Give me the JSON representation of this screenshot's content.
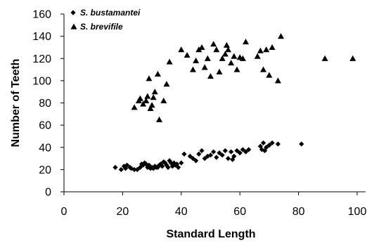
{
  "chart_data": {
    "type": "scatter",
    "xlabel": "Standard Length",
    "ylabel": "Number of Teeth",
    "xlim": [
      0,
      100
    ],
    "ylim": [
      0,
      160
    ],
    "xticks": [
      "0",
      "20",
      "40",
      "60",
      "80",
      "100"
    ],
    "yticks": [
      "0",
      "20",
      "40",
      "60",
      "80",
      "100",
      "120",
      "140",
      "160"
    ],
    "grid": false,
    "legend_position": "top-left",
    "series": [
      {
        "name": "S. bustamantei",
        "marker": "diamond",
        "color": "#000000",
        "points": [
          [
            17.5,
            22
          ],
          [
            19.5,
            20
          ],
          [
            20.5,
            23
          ],
          [
            21,
            21
          ],
          [
            21.5,
            24
          ],
          [
            22.5,
            22
          ],
          [
            23,
            21
          ],
          [
            24,
            20
          ],
          [
            25,
            20
          ],
          [
            26,
            22
          ],
          [
            26.5,
            25
          ],
          [
            27,
            24
          ],
          [
            27.5,
            26
          ],
          [
            28,
            25
          ],
          [
            28.5,
            22
          ],
          [
            29,
            24
          ],
          [
            29.5,
            21
          ],
          [
            30,
            22
          ],
          [
            30.5,
            21
          ],
          [
            31,
            23
          ],
          [
            31.5,
            22
          ],
          [
            32,
            22
          ],
          [
            32.5,
            24
          ],
          [
            33,
            25
          ],
          [
            33.5,
            23
          ],
          [
            34,
            27
          ],
          [
            34.5,
            26
          ],
          [
            35,
            24
          ],
          [
            35.5,
            22
          ],
          [
            36,
            28
          ],
          [
            36.5,
            26
          ],
          [
            37,
            23
          ],
          [
            37.5,
            26
          ],
          [
            38,
            24
          ],
          [
            38.5,
            25
          ],
          [
            39,
            22
          ],
          [
            40,
            26
          ],
          [
            41,
            34
          ],
          [
            43,
            32
          ],
          [
            44,
            30
          ],
          [
            45,
            28
          ],
          [
            46,
            34
          ],
          [
            47,
            37
          ],
          [
            48,
            30
          ],
          [
            49,
            32
          ],
          [
            50,
            33
          ],
          [
            51,
            36
          ],
          [
            52,
            31
          ],
          [
            53,
            35
          ],
          [
            54,
            33
          ],
          [
            55,
            37
          ],
          [
            56,
            30
          ],
          [
            57,
            36
          ],
          [
            57.5,
            29
          ],
          [
            58,
            32
          ],
          [
            59,
            37
          ],
          [
            60,
            35
          ],
          [
            61,
            38
          ],
          [
            62,
            36
          ],
          [
            63,
            38
          ],
          [
            67,
            41
          ],
          [
            67.5,
            38
          ],
          [
            68,
            44
          ],
          [
            68.5,
            37
          ],
          [
            69,
            40
          ],
          [
            70,
            42
          ],
          [
            71,
            44
          ],
          [
            73,
            43
          ],
          [
            81,
            43
          ]
        ]
      },
      {
        "name": "S. brevifile",
        "marker": "triangle",
        "color": "#000000",
        "points": [
          [
            24,
            76
          ],
          [
            25.5,
            82
          ],
          [
            26,
            84
          ],
          [
            27,
            79
          ],
          [
            28,
            82
          ],
          [
            28.5,
            86
          ],
          [
            29,
            102
          ],
          [
            29.5,
            75
          ],
          [
            30,
            78
          ],
          [
            30.5,
            85
          ],
          [
            31,
            90
          ],
          [
            32,
            106
          ],
          [
            32.5,
            65
          ],
          [
            34,
            82
          ],
          [
            35,
            97
          ],
          [
            36,
            117
          ],
          [
            40,
            128
          ],
          [
            42,
            123
          ],
          [
            44,
            110
          ],
          [
            45,
            118
          ],
          [
            46,
            128
          ],
          [
            47,
            130
          ],
          [
            48,
            112
          ],
          [
            49,
            120
          ],
          [
            50,
            104
          ],
          [
            51,
            133
          ],
          [
            52,
            128
          ],
          [
            53,
            108
          ],
          [
            54,
            120
          ],
          [
            55,
            124
          ],
          [
            55.5,
            132
          ],
          [
            56,
            128
          ],
          [
            57,
            116
          ],
          [
            58,
            122
          ],
          [
            59,
            110
          ],
          [
            60,
            121
          ],
          [
            61,
            120
          ],
          [
            62,
            135
          ],
          [
            66,
            122
          ],
          [
            67,
            127
          ],
          [
            68,
            110
          ],
          [
            69,
            128
          ],
          [
            70,
            105
          ],
          [
            71,
            130
          ],
          [
            73,
            100
          ],
          [
            74,
            140
          ],
          [
            89,
            120
          ],
          [
            98.5,
            120
          ]
        ]
      }
    ]
  }
}
